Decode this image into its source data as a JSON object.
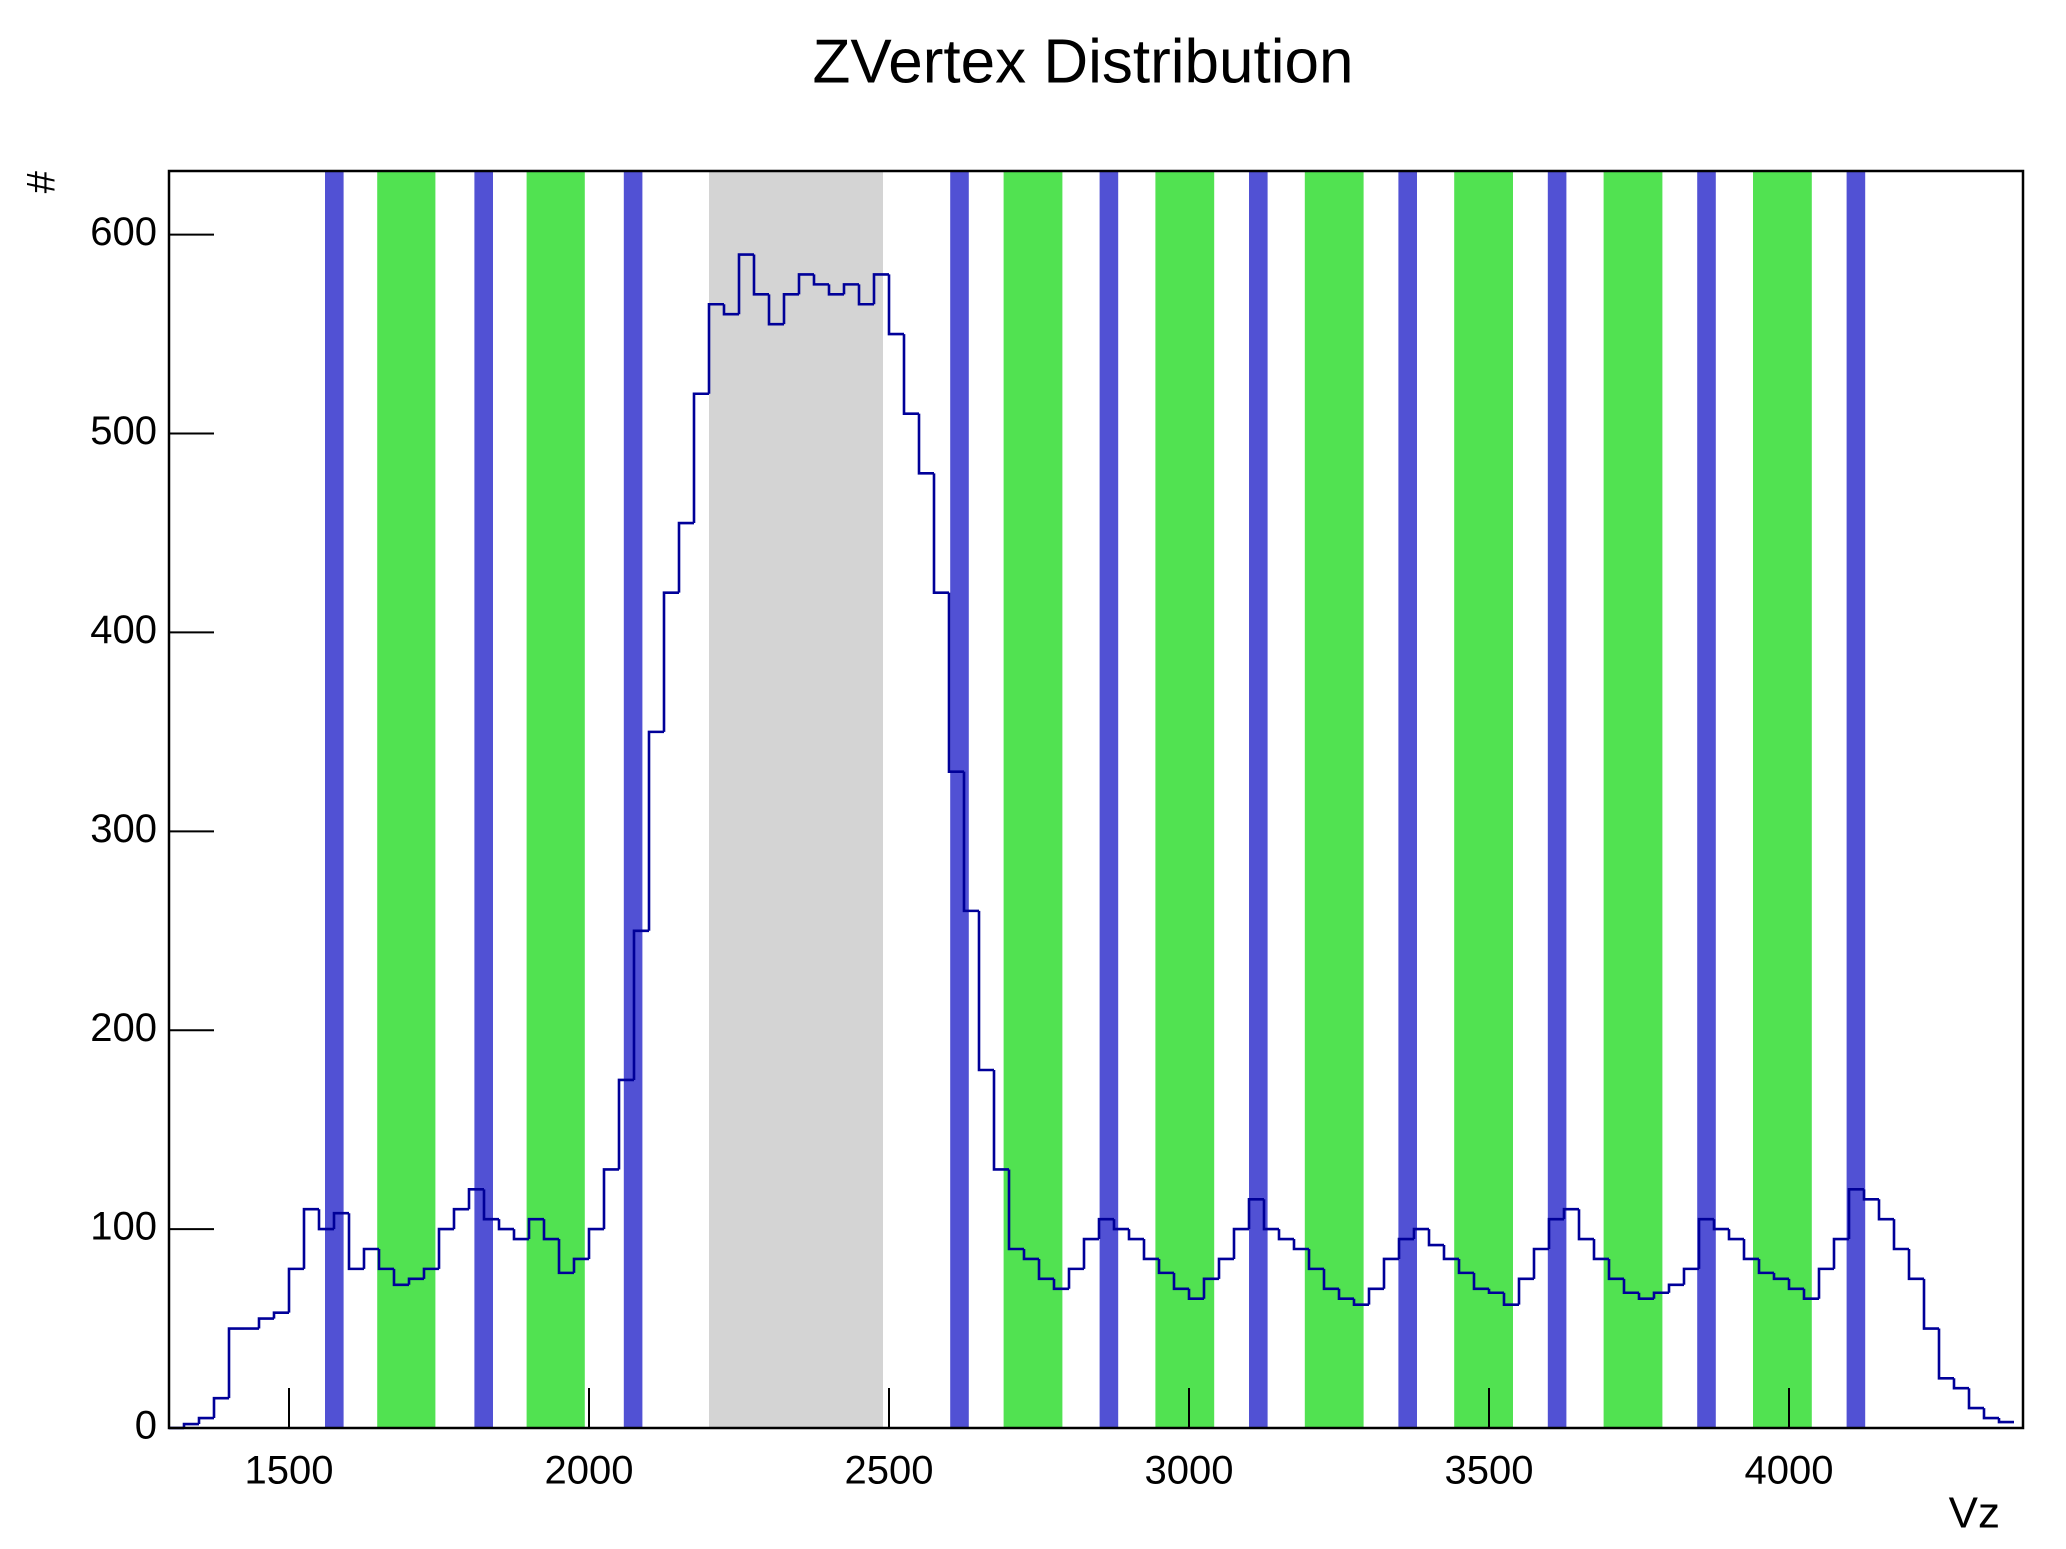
{
  "chart_data": {
    "type": "histogram",
    "title": "ZVertex Distribution",
    "x_label": "Vz",
    "y_label": "#",
    "color": "#000099",
    "bins": [
      1300,
      1325,
      1350,
      1375,
      1400,
      1425,
      1450,
      1475,
      1500,
      1525,
      1550,
      1575,
      1600,
      1625,
      1650,
      1675,
      1700,
      1725,
      1750,
      1775,
      1800,
      1825,
      1850,
      1875,
      1900,
      1925,
      1950,
      1975,
      2000,
      2025,
      2050,
      2075,
      2100,
      2125,
      2150,
      2175,
      2200,
      2225,
      2250,
      2275,
      2300,
      2325,
      2350,
      2375,
      2400,
      2425,
      2450,
      2475,
      2500,
      2525,
      2550,
      2575,
      2600,
      2625,
      2650,
      2675,
      2700,
      2725,
      2750,
      2775,
      2800,
      2825,
      2850,
      2875,
      2900,
      2925,
      2950,
      2975,
      3000,
      3025,
      3050,
      3075,
      3100,
      3125,
      3150,
      3175,
      3200,
      3225,
      3250,
      3275,
      3300,
      3325,
      3350,
      3375,
      3400,
      3425,
      3450,
      3475,
      3500,
      3525,
      3550,
      3575,
      3600,
      3625,
      3650,
      3675,
      3700,
      3725,
      3750,
      3775,
      3800,
      3825,
      3850,
      3875,
      3900,
      3925,
      3950,
      3975,
      4000,
      4025,
      4050,
      4075,
      4100,
      4125,
      4150,
      4175,
      4200,
      4225,
      4250,
      4275,
      4300,
      4325,
      4350,
      4375
    ],
    "values": [
      0,
      2,
      5,
      15,
      50,
      50,
      55,
      58,
      80,
      110,
      100,
      108,
      80,
      90,
      80,
      72,
      75,
      80,
      100,
      110,
      120,
      105,
      100,
      95,
      105,
      95,
      78,
      85,
      100,
      130,
      175,
      250,
      350,
      420,
      455,
      520,
      565,
      560,
      590,
      570,
      555,
      570,
      580,
      575,
      570,
      575,
      565,
      580,
      550,
      510,
      480,
      420,
      330,
      260,
      180,
      130,
      90,
      85,
      75,
      70,
      80,
      95,
      105,
      100,
      95,
      85,
      78,
      70,
      65,
      75,
      85,
      100,
      115,
      100,
      95,
      90,
      80,
      70,
      65,
      62,
      70,
      85,
      95,
      100,
      92,
      85,
      78,
      70,
      68,
      62,
      75,
      90,
      105,
      110,
      95,
      85,
      75,
      68,
      65,
      68,
      72,
      80,
      105,
      100,
      95,
      85,
      78,
      75,
      70,
      65,
      80,
      95,
      120,
      115,
      105,
      90,
      75,
      50,
      25,
      20,
      10,
      5,
      3
    ],
    "bands": [
      {
        "range": [
          2200,
          2490
        ],
        "color": "#cccccc"
      },
      {
        "range": [
          1647,
          1744
        ],
        "color": "#33dd33"
      },
      {
        "range": [
          1896,
          1993
        ],
        "color": "#33dd33"
      },
      {
        "range": [
          2691,
          2789
        ],
        "color": "#33dd33"
      },
      {
        "range": [
          2944,
          3042
        ],
        "color": "#33dd33"
      },
      {
        "range": [
          3193,
          3291
        ],
        "color": "#33dd33"
      },
      {
        "range": [
          3442,
          3540
        ],
        "color": "#33dd33"
      },
      {
        "range": [
          3691,
          3789
        ],
        "color": "#33dd33"
      },
      {
        "range": [
          3940,
          4038
        ],
        "color": "#33dd33"
      },
      {
        "range": [
          1560,
          1591
        ],
        "color": "#3333cc"
      },
      {
        "range": [
          1809,
          1840
        ],
        "color": "#3333cc"
      },
      {
        "range": [
          2058,
          2089
        ],
        "color": "#3333cc"
      },
      {
        "range": [
          2602,
          2633
        ],
        "color": "#3333cc"
      },
      {
        "range": [
          2851,
          2882
        ],
        "color": "#3333cc"
      },
      {
        "range": [
          3100,
          3131
        ],
        "color": "#3333cc"
      },
      {
        "range": [
          3349,
          3380
        ],
        "color": "#3333cc"
      },
      {
        "range": [
          3598,
          3629
        ],
        "color": "#3333cc"
      },
      {
        "range": [
          3847,
          3878
        ],
        "color": "#3333cc"
      },
      {
        "range": [
          4096,
          4127
        ],
        "color": "#3333cc"
      }
    ],
    "xlim": [
      1300,
      4390
    ],
    "xticks": [
      1500,
      2000,
      2500,
      3000,
      3500,
      4000
    ],
    "ylim": [
      0,
      632
    ],
    "yticks": [
      0,
      100,
      200,
      300,
      400,
      500,
      600
    ]
  }
}
